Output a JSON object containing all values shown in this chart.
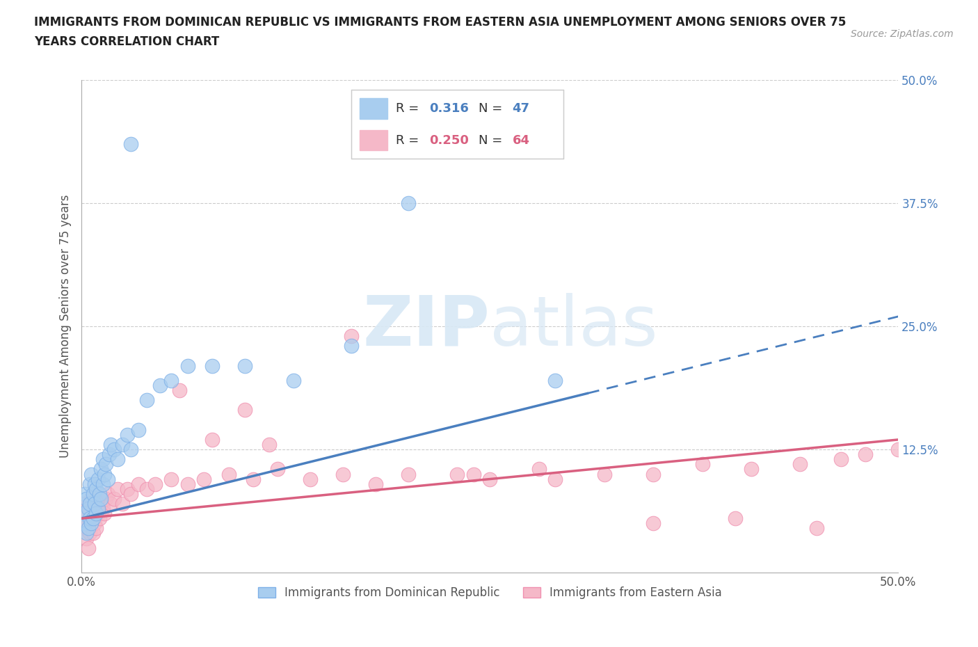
{
  "title_line1": "IMMIGRANTS FROM DOMINICAN REPUBLIC VS IMMIGRANTS FROM EASTERN ASIA UNEMPLOYMENT AMONG SENIORS OVER 75",
  "title_line2": "YEARS CORRELATION CHART",
  "source": "Source: ZipAtlas.com",
  "ylabel": "Unemployment Among Seniors over 75 years",
  "xlim": [
    0.0,
    0.5
  ],
  "ylim": [
    0.0,
    0.5
  ],
  "ytick_positions": [
    0.0,
    0.125,
    0.25,
    0.375,
    0.5
  ],
  "ytick_labels": [
    "",
    "12.5%",
    "25.0%",
    "37.5%",
    "50.0%"
  ],
  "series1_color": "#A8CDEF",
  "series2_color": "#F5B8C8",
  "series1_edge_color": "#7EB0E8",
  "series2_edge_color": "#F090B0",
  "series1_label": "Immigrants from Dominican Republic",
  "series2_label": "Immigrants from Eastern Asia",
  "series1_R": "0.316",
  "series1_N": "47",
  "series2_R": "0.250",
  "series2_N": "64",
  "series1_line_color": "#4A7FBF",
  "series2_line_color": "#D96080",
  "background_color": "#FFFFFF",
  "watermark_zip": "ZIP",
  "watermark_atlas": "atlas",
  "grid_color": "#CCCCCC",
  "legend_R_color": "#4A7FBF",
  "legend_R2_color": "#D96080",
  "series1_x": [
    0.001,
    0.002,
    0.002,
    0.003,
    0.003,
    0.004,
    0.004,
    0.005,
    0.005,
    0.005,
    0.006,
    0.006,
    0.007,
    0.007,
    0.008,
    0.008,
    0.009,
    0.009,
    0.01,
    0.01,
    0.011,
    0.012,
    0.012,
    0.013,
    0.013,
    0.014,
    0.015,
    0.016,
    0.017,
    0.018,
    0.02,
    0.022,
    0.025,
    0.028,
    0.03,
    0.035,
    0.04,
    0.048,
    0.055,
    0.065,
    0.08,
    0.1,
    0.13,
    0.165,
    0.2,
    0.29,
    0.03
  ],
  "series1_y": [
    0.06,
    0.05,
    0.08,
    0.04,
    0.075,
    0.065,
    0.045,
    0.09,
    0.055,
    0.07,
    0.1,
    0.05,
    0.08,
    0.055,
    0.07,
    0.09,
    0.06,
    0.085,
    0.065,
    0.095,
    0.08,
    0.075,
    0.105,
    0.09,
    0.115,
    0.1,
    0.11,
    0.095,
    0.12,
    0.13,
    0.125,
    0.115,
    0.13,
    0.14,
    0.125,
    0.145,
    0.175,
    0.19,
    0.195,
    0.21,
    0.21,
    0.21,
    0.195,
    0.23,
    0.375,
    0.195,
    0.435
  ],
  "series2_x": [
    0.001,
    0.002,
    0.002,
    0.003,
    0.003,
    0.004,
    0.004,
    0.005,
    0.005,
    0.006,
    0.006,
    0.007,
    0.007,
    0.008,
    0.008,
    0.009,
    0.01,
    0.01,
    0.011,
    0.012,
    0.013,
    0.014,
    0.015,
    0.016,
    0.018,
    0.02,
    0.022,
    0.025,
    0.028,
    0.03,
    0.035,
    0.04,
    0.045,
    0.055,
    0.065,
    0.075,
    0.09,
    0.105,
    0.12,
    0.14,
    0.16,
    0.18,
    0.2,
    0.23,
    0.25,
    0.28,
    0.32,
    0.35,
    0.38,
    0.41,
    0.44,
    0.465,
    0.1,
    0.24,
    0.29,
    0.35,
    0.4,
    0.45,
    0.48,
    0.5,
    0.165,
    0.06,
    0.08,
    0.115
  ],
  "series2_y": [
    0.055,
    0.045,
    0.07,
    0.035,
    0.06,
    0.05,
    0.025,
    0.065,
    0.04,
    0.055,
    0.075,
    0.04,
    0.065,
    0.05,
    0.07,
    0.045,
    0.06,
    0.08,
    0.055,
    0.07,
    0.065,
    0.06,
    0.075,
    0.08,
    0.07,
    0.075,
    0.085,
    0.07,
    0.085,
    0.08,
    0.09,
    0.085,
    0.09,
    0.095,
    0.09,
    0.095,
    0.1,
    0.095,
    0.105,
    0.095,
    0.1,
    0.09,
    0.1,
    0.1,
    0.095,
    0.105,
    0.1,
    0.1,
    0.11,
    0.105,
    0.11,
    0.115,
    0.165,
    0.1,
    0.095,
    0.05,
    0.055,
    0.045,
    0.12,
    0.125,
    0.24,
    0.185,
    0.135,
    0.13
  ],
  "blue_line_solid_end": 0.31,
  "blue_line_x_start": 0.0,
  "blue_line_y_start": 0.055,
  "blue_line_x_end": 0.5,
  "blue_line_y_end": 0.26,
  "pink_line_x_start": 0.0,
  "pink_line_y_start": 0.055,
  "pink_line_x_end": 0.5,
  "pink_line_y_end": 0.135
}
